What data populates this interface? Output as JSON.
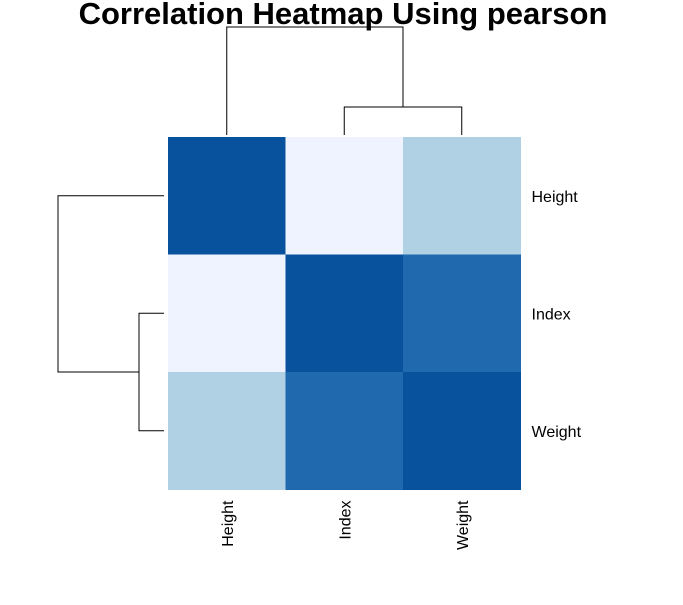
{
  "chart_data": {
    "type": "heatmap",
    "title": "Correlation Heatmap Using pearson",
    "rows": [
      "Height",
      "Index",
      "Weight"
    ],
    "columns": [
      "Height",
      "Index",
      "Weight"
    ],
    "values": [
      [
        1.0,
        0.1,
        0.45
      ],
      [
        0.1,
        1.0,
        0.82
      ],
      [
        0.45,
        0.82,
        1.0
      ]
    ],
    "color_scale": {
      "low": "#eff3ff",
      "mid": "#b0d0e4",
      "high_mid": "#2169ae",
      "high": "#08519c"
    },
    "row_dendrogram": {
      "merges": [
        [
          "Index",
          "Weight"
        ],
        [
          [
            "Index",
            "Weight"
          ],
          "Height"
        ]
      ]
    },
    "column_dendrogram": {
      "merges": [
        [
          "Index",
          "Weight"
        ],
        [
          [
            "Index",
            "Weight"
          ],
          "Height"
        ]
      ]
    },
    "legend": "none"
  }
}
